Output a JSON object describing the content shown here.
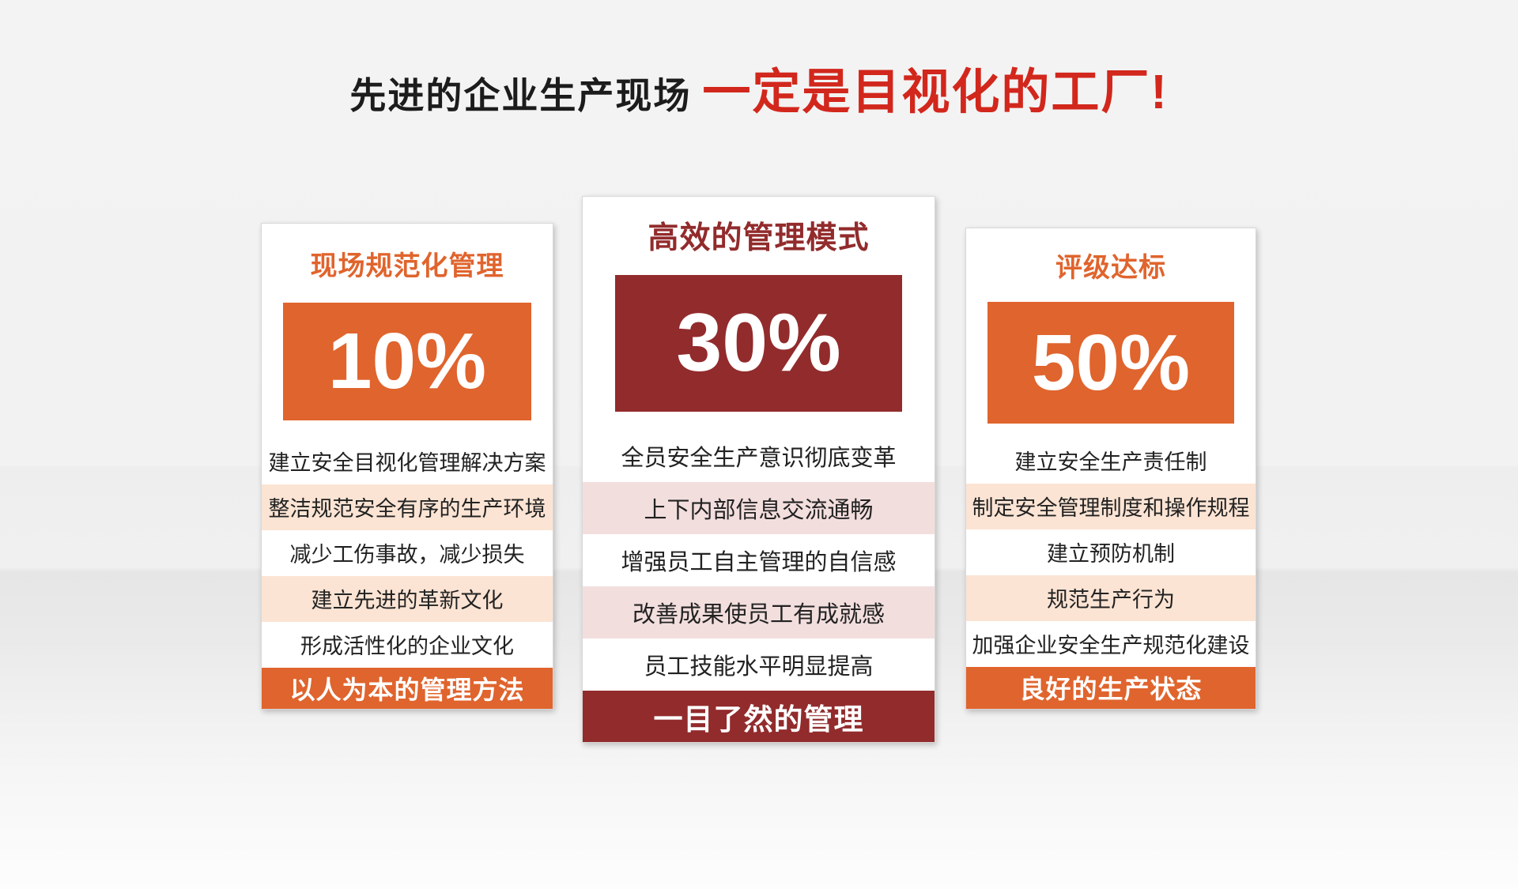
{
  "title": {
    "black": "先进的企业生产现场",
    "red": "一定是目视化的工厂!"
  },
  "cards": [
    {
      "heading": "现场规范化管理",
      "percent": "10%",
      "items": [
        "建立安全目视化管理解决方案",
        "整洁规范安全有序的生产环境",
        "减少工伤事故，减少损失",
        "建立先进的革新文化",
        "形成活性化的企业文化"
      ],
      "footer": "以人为本的管理方法"
    },
    {
      "heading": "高效的管理模式",
      "percent": "30%",
      "items": [
        "全员安全生产意识彻底变革",
        "上下内部信息交流通畅",
        "增强员工自主管理的自信感",
        "改善成果使员工有成就感",
        "员工技能水平明显提高"
      ],
      "footer": "一目了然的管理"
    },
    {
      "heading": "评级达标",
      "percent": "50%",
      "items": [
        "建立安全生产责任制",
        "制定安全管理制度和操作规程",
        "建立预防机制",
        "规范生产行为",
        "加强企业安全生产规范化建设"
      ],
      "footer": "良好的生产状态"
    }
  ],
  "colors": {
    "accent_orange": "#e0642d",
    "accent_dark_red": "#922b2c",
    "title_red": "#d2271c",
    "row_tint_orange": "#fbe4d4",
    "row_tint_red": "#f3dede",
    "background": "#f2f2f2"
  }
}
